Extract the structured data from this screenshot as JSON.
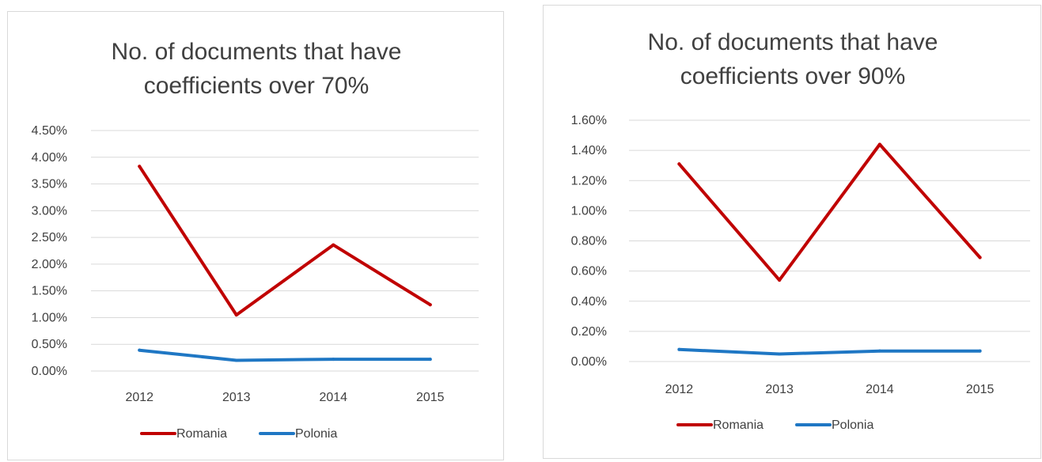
{
  "colors": {
    "Romania": "#c00000",
    "Polonia": "#1f77c4",
    "grid": "#d9d9d9",
    "text": "#404040"
  },
  "chart_data": [
    {
      "type": "line",
      "title": "No. of documents that have coefficients over 70%",
      "title_lines": [
        "No. of documents that have",
        "coefficients over 70%"
      ],
      "xlabel": "",
      "ylabel": "",
      "categories": [
        "2012",
        "2013",
        "2014",
        "2015"
      ],
      "ylim": [
        0,
        0.045
      ],
      "ytick_labels": [
        "0.00%",
        "0.50%",
        "1.00%",
        "1.50%",
        "2.00%",
        "2.50%",
        "3.00%",
        "3.50%",
        "4.00%",
        "4.50%"
      ],
      "grid": true,
      "legend": "bottom",
      "series": [
        {
          "name": "Romania",
          "values": [
            0.0383,
            0.0105,
            0.0236,
            0.0124
          ]
        },
        {
          "name": "Polonia",
          "values": [
            0.0039,
            0.002,
            0.0022,
            0.0022
          ]
        }
      ]
    },
    {
      "type": "line",
      "title": "No. of documents that have coefficients over 90%",
      "title_lines": [
        "No. of documents that have",
        "coefficients over 90%"
      ],
      "xlabel": "",
      "ylabel": "",
      "categories": [
        "2012",
        "2013",
        "2014",
        "2015"
      ],
      "ylim": [
        0,
        0.016
      ],
      "ytick_labels": [
        "0.00%",
        "0.20%",
        "0.40%",
        "0.60%",
        "0.80%",
        "1.00%",
        "1.20%",
        "1.40%",
        "1.60%"
      ],
      "grid": true,
      "legend": "bottom",
      "series": [
        {
          "name": "Romania",
          "values": [
            0.0131,
            0.0054,
            0.0144,
            0.0069
          ]
        },
        {
          "name": "Polonia",
          "values": [
            0.0008,
            0.0005,
            0.0007,
            0.0007
          ]
        }
      ]
    }
  ]
}
